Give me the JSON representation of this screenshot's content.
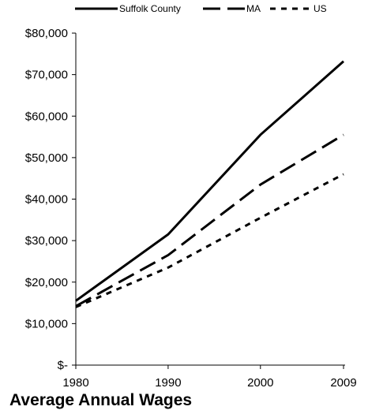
{
  "chart_data": {
    "type": "line",
    "caption": "Average Annual Wages",
    "x": [
      "1980",
      "1990",
      "2000",
      "2009"
    ],
    "x_numeric": [
      1980,
      1990,
      2000,
      2009
    ],
    "ylim": [
      0,
      80000
    ],
    "y_ticks": [
      0,
      10000,
      20000,
      30000,
      40000,
      50000,
      60000,
      70000,
      80000
    ],
    "y_tick_labels": [
      "$-",
      "$10,000",
      "$20,000",
      "$30,000",
      "$40,000",
      "$50,000",
      "$60,000",
      "$70,000",
      "$80,000"
    ],
    "grid": false,
    "legend_position": "top",
    "series": [
      {
        "name": "Suffolk County",
        "style": "solid",
        "color": "#000000",
        "values": [
          15500,
          31500,
          55500,
          73200
        ]
      },
      {
        "name": "MA",
        "style": "dashed",
        "color": "#000000",
        "values": [
          14200,
          26500,
          43500,
          55500
        ]
      },
      {
        "name": "US",
        "style": "dotted",
        "color": "#000000",
        "values": [
          14000,
          23500,
          35500,
          46000
        ]
      }
    ]
  }
}
